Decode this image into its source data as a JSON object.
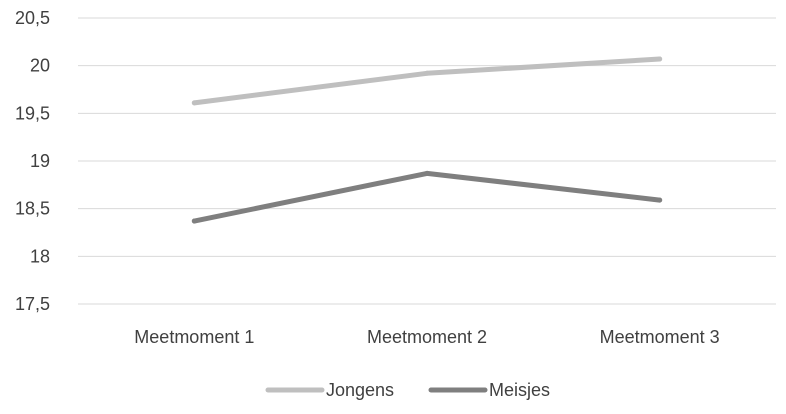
{
  "chart_data": {
    "type": "line",
    "categories": [
      "Meetmoment 1",
      "Meetmoment 2",
      "Meetmoment 3"
    ],
    "series": [
      {
        "name": "Jongens",
        "values": [
          19.61,
          19.92,
          20.07
        ],
        "color": "#bfbfbf"
      },
      {
        "name": "Meisjes",
        "values": [
          18.37,
          18.87,
          18.59
        ],
        "color": "#7f7f7f"
      }
    ],
    "ylim": [
      17.5,
      20.5
    ],
    "yticks": [
      "17,5",
      "18",
      "18,5",
      "19",
      "19,5",
      "20",
      "20,5"
    ],
    "grid": true,
    "legend_position": "bottom",
    "colors": {
      "grid": "#d9d9d9",
      "text": "#404040"
    }
  }
}
